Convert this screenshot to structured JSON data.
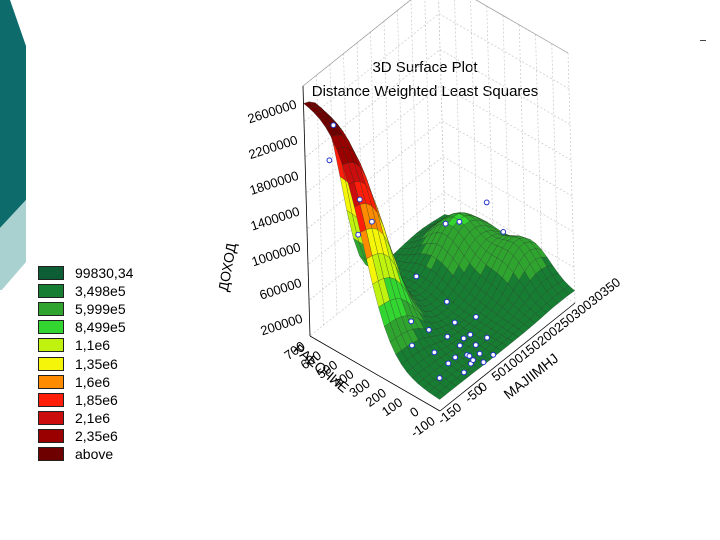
{
  "chart_data": {
    "type": "surface3d",
    "title": "3D Surface Plot",
    "subtitle": "Distance Weighted Least Squares",
    "xlabel": "PAEOЧИЕ",
    "ylabel": "MAJIIMHJ",
    "zlabel": "ДОХОД",
    "x_ticks": [
      "-100",
      "0",
      "100",
      "200",
      "300",
      "400",
      "500",
      "600",
      "700"
    ],
    "y_ticks": [
      "-150",
      "-50",
      "0",
      "50",
      "100",
      "150",
      "200",
      "250",
      "300",
      "350"
    ],
    "y_ticks_text": [
      "-150",
      "-50",
      "0",
      "5010015020025030030350"
    ],
    "z_ticks": [
      "200000",
      "600000",
      "1000000",
      "1400000",
      "1800000",
      "2200000",
      "2600000"
    ],
    "z_tick_labels": [
      "200000",
      "600000",
      "1000000",
      "1400000",
      "1800000",
      "2200000",
      "2600000"
    ],
    "zlim": [
      0,
      2800000
    ],
    "legend_placement": "left",
    "legend": [
      {
        "label": "99830,34",
        "color": "#0d5e34"
      },
      {
        "label": "3,498e5",
        "color": "#167d32"
      },
      {
        "label": "5,999e5",
        "color": "#2fa530"
      },
      {
        "label": "8,499e5",
        "color": "#33d630"
      },
      {
        "label": "1,1e6",
        "color": "#bff20e"
      },
      {
        "label": "1,35e6",
        "color": "#f5f50a"
      },
      {
        "label": "1,6e6",
        "color": "#ff8c00"
      },
      {
        "label": "1,85e6",
        "color": "#ff1e0a"
      },
      {
        "label": "2,1e6",
        "color": "#cc0d0d"
      },
      {
        "label": "2,35e6",
        "color": "#9b0000"
      },
      {
        "label": "above",
        "color": "#6e0000"
      }
    ],
    "points": [
      {
        "x": -60,
        "y": -10,
        "z": 150000
      },
      {
        "x": -40,
        "y": 10,
        "z": 120000
      },
      {
        "x": -20,
        "y": 0,
        "z": 180000
      },
      {
        "x": 0,
        "y": 20,
        "z": 100000
      },
      {
        "x": 20,
        "y": -20,
        "z": 160000
      },
      {
        "x": 40,
        "y": 10,
        "z": 200000
      },
      {
        "x": -70,
        "y": 30,
        "z": 80000
      },
      {
        "x": -30,
        "y": 40,
        "z": 110000
      },
      {
        "x": 10,
        "y": 50,
        "z": 140000
      },
      {
        "x": 50,
        "y": 30,
        "z": 220000
      },
      {
        "x": -50,
        "y": -30,
        "z": 90000
      },
      {
        "x": 30,
        "y": -40,
        "z": 130000
      },
      {
        "x": 80,
        "y": -60,
        "z": 250000
      },
      {
        "x": 60,
        "y": 60,
        "z": 180000
      },
      {
        "x": -10,
        "y": 80,
        "z": 170000
      },
      {
        "x": 100,
        "y": 0,
        "z": 260000
      },
      {
        "x": 120,
        "y": 40,
        "z": 300000
      },
      {
        "x": 0,
        "y": -90,
        "z": 120000
      },
      {
        "x": -80,
        "y": 60,
        "z": 100000
      },
      {
        "x": 150,
        "y": -100,
        "z": 350000
      },
      {
        "x": 180,
        "y": -20,
        "z": 300000
      },
      {
        "x": 200,
        "y": 60,
        "z": 400000
      },
      {
        "x": 220,
        "y": -60,
        "z": 450000
      },
      {
        "x": 90,
        "y": 100,
        "z": 250000
      },
      {
        "x": 300,
        "y": 10,
        "z": 700000
      },
      {
        "x": 350,
        "y": 150,
        "z": 900000
      },
      {
        "x": 450,
        "y": -110,
        "z": 1300000
      },
      {
        "x": 500,
        "y": -30,
        "z": 1200000
      },
      {
        "x": 520,
        "y": -60,
        "z": 1500000
      },
      {
        "x": 600,
        "y": -120,
        "z": 2000000
      },
      {
        "x": 620,
        "y": -90,
        "z": 2300000
      },
      {
        "x": 400,
        "y": 330,
        "z": 650000
      },
      {
        "x": 250,
        "y": 300,
        "z": 550000
      },
      {
        "x": 350,
        "y": 200,
        "z": 800000
      }
    ]
  }
}
